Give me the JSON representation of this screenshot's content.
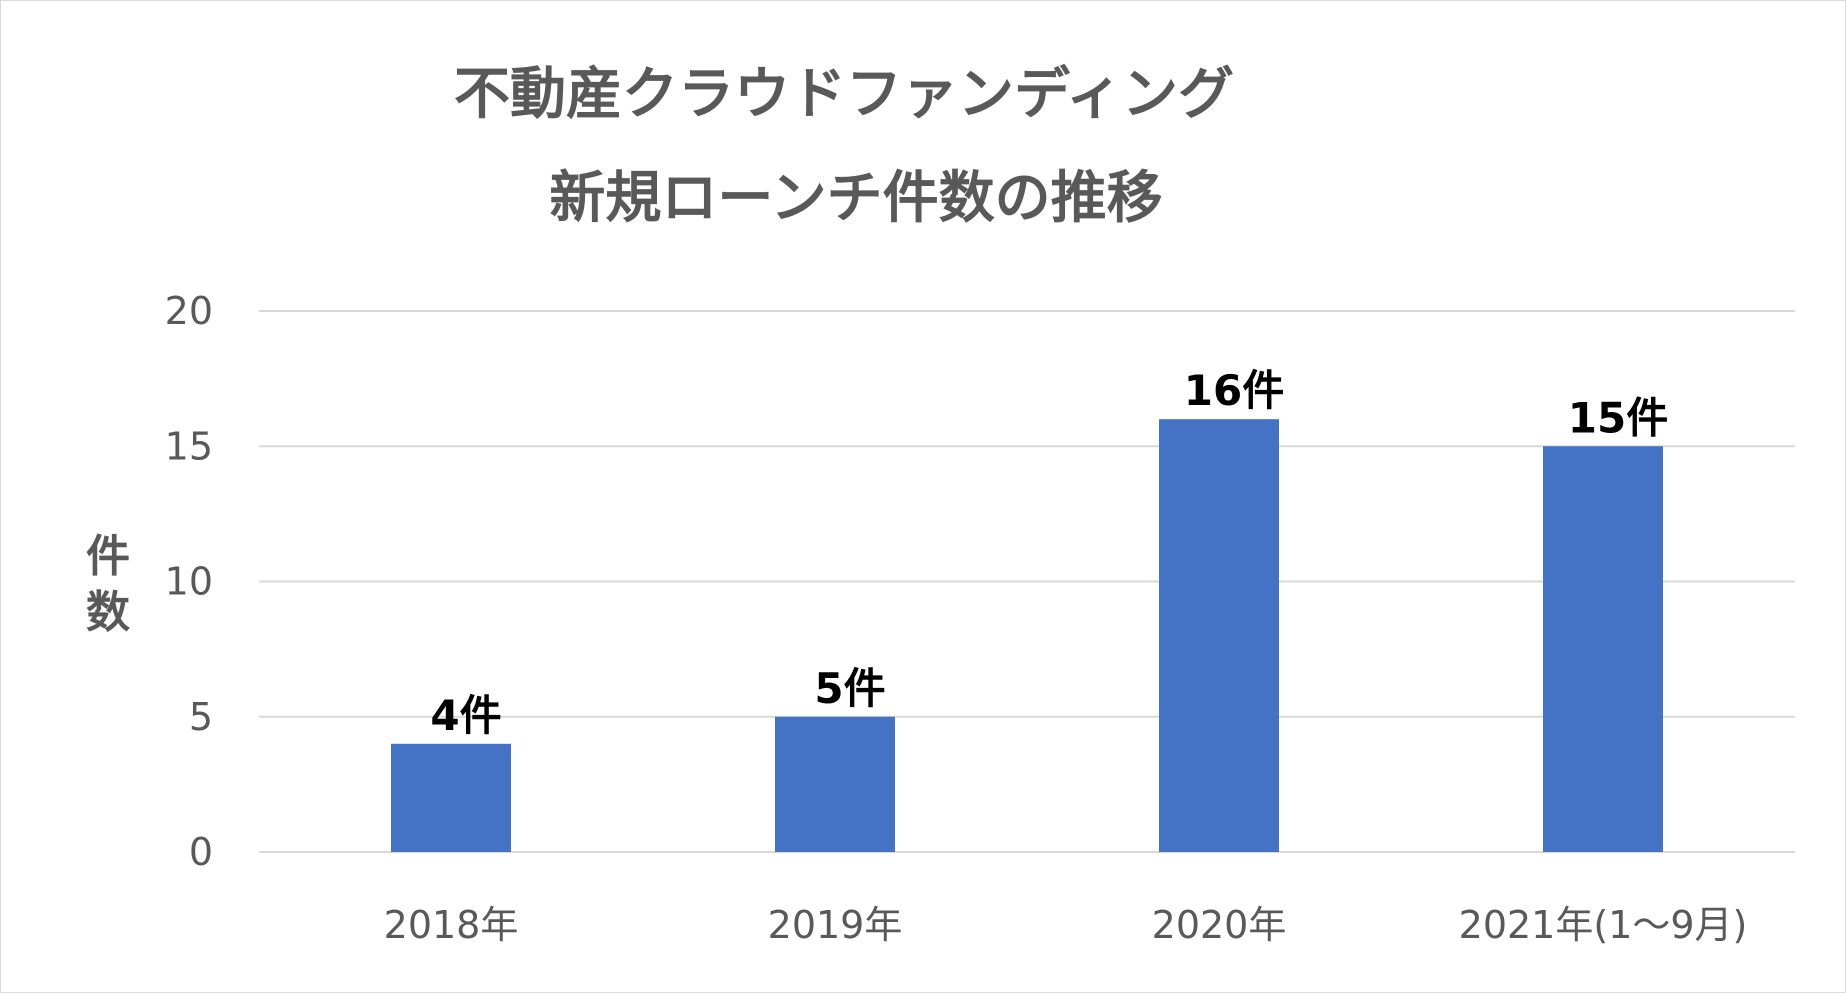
{
  "chart_data": {
    "type": "bar",
    "title_lines": [
      "不動産クラウドファンディング",
      "新規ローンチ件数の推移"
    ],
    "categories": [
      "2018年",
      "2019年",
      "2020年",
      "2021年(1～9月)"
    ],
    "values": [
      4,
      5,
      16,
      15
    ],
    "data_labels": [
      "4件",
      "5件",
      "16件",
      "15件"
    ],
    "ylabel": "件数",
    "ylim": [
      0,
      20
    ],
    "yticks": [
      "0",
      "5",
      "10",
      "15",
      "20"
    ],
    "grid": true,
    "colors": {
      "bar": "#4472c4",
      "text": "#595959",
      "grid": "#d9d9d9"
    }
  }
}
